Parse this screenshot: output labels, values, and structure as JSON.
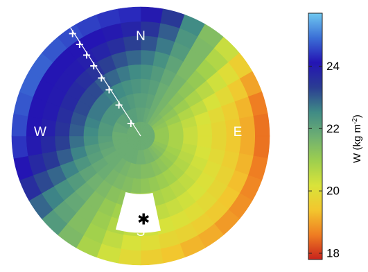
{
  "chart_data": {
    "type": "heatmap",
    "subtype": "polar",
    "directions": {
      "north": "N",
      "south": "S",
      "east": "E",
      "west": "W"
    },
    "colorbar": {
      "label": "W (kg m",
      "label_sup": "-2",
      "label_tail": ")",
      "range": [
        17.8,
        25.7
      ],
      "ticks": [
        {
          "value": 18,
          "label": "18"
        },
        {
          "value": 20,
          "label": "20"
        },
        {
          "value": 22,
          "label": "22"
        },
        {
          "value": 24,
          "label": "24"
        }
      ],
      "colors": [
        "#c8221c",
        "#ef7d22",
        "#f3c62e",
        "#d9e33a",
        "#9ecf4e",
        "#6eaf72",
        "#3f8a86",
        "#2a3c93",
        "#2414b4",
        "#3b6fd6",
        "#6fc8f0"
      ]
    },
    "track_azimuth_deg": -33,
    "track_markers": [
      {
        "zenith_fraction": 0.12,
        "symbol": "+"
      },
      {
        "zenith_fraction": 0.29,
        "symbol": "+"
      },
      {
        "zenith_fraction": 0.43,
        "symbol": "+"
      },
      {
        "zenith_fraction": 0.54,
        "symbol": "+"
      },
      {
        "zenith_fraction": 0.65,
        "symbol": "+"
      },
      {
        "zenith_fraction": 0.75,
        "symbol": "+"
      },
      {
        "zenith_fraction": 0.85,
        "symbol": "+"
      },
      {
        "zenith_fraction": 0.95,
        "symbol": "+"
      }
    ],
    "sun_marker": {
      "azimuth_deg": 178,
      "zenith_fraction": 0.65,
      "symbol": "✱"
    },
    "masked_region": {
      "azimuth_start_deg": 168,
      "azimuth_end_deg": 195,
      "zenith_start": 0.45,
      "zenith_end": 0.75
    },
    "grid": {
      "rings": 9,
      "sectors": 36,
      "values": [
        [
          21.8,
          21.8,
          21.8,
          21.8,
          21.8,
          21.8,
          21.8,
          21.8,
          21.8,
          21.8,
          21.8,
          21.8,
          21.8,
          21.8,
          21.8,
          21.8,
          21.8,
          21.8,
          21.8,
          21.8,
          21.8,
          21.8,
          21.8,
          21.8,
          21.8,
          21.8,
          21.8,
          21.8,
          21.8,
          21.8,
          21.8,
          21.8,
          21.8,
          21.8,
          21.8,
          21.8
        ],
        [
          22.0,
          21.9,
          21.8,
          21.6,
          21.5,
          21.3,
          21.2,
          21.1,
          21.1,
          21.1,
          21.1,
          21.2,
          21.3,
          21.4,
          21.5,
          21.6,
          21.6,
          21.7,
          21.7,
          21.8,
          21.8,
          21.8,
          21.8,
          21.8,
          21.8,
          21.8,
          21.8,
          21.8,
          21.9,
          21.9,
          22.0,
          22.0,
          22.1,
          22.1,
          22.1,
          22.0
        ],
        [
          22.1,
          22.0,
          21.8,
          21.6,
          21.4,
          21.2,
          21.0,
          20.8,
          20.8,
          20.8,
          20.8,
          20.9,
          21.0,
          21.1,
          21.2,
          21.3,
          21.4,
          21.4,
          21.5,
          21.5,
          21.6,
          21.7,
          21.8,
          21.8,
          21.9,
          22.0,
          22.1,
          22.2,
          22.2,
          22.3,
          22.3,
          22.3,
          22.3,
          22.3,
          22.2,
          22.1
        ],
        [
          22.2,
          22.1,
          21.8,
          21.6,
          21.3,
          21.0,
          20.7,
          20.5,
          20.4,
          20.4,
          20.5,
          20.6,
          20.7,
          20.8,
          20.9,
          21.0,
          21.1,
          21.2,
          21.3,
          21.4,
          21.5,
          21.6,
          21.8,
          21.9,
          22.1,
          22.2,
          22.4,
          22.5,
          22.6,
          22.7,
          22.7,
          22.7,
          22.6,
          22.5,
          22.4,
          22.3
        ],
        [
          22.4,
          22.2,
          21.9,
          21.6,
          21.2,
          20.8,
          20.5,
          20.2,
          20.1,
          20.1,
          20.2,
          20.3,
          20.4,
          20.5,
          20.6,
          20.7,
          20.8,
          20.9,
          21.0,
          21.2,
          21.3,
          21.5,
          21.7,
          22.0,
          22.3,
          22.6,
          22.8,
          23.0,
          23.1,
          23.2,
          23.2,
          23.2,
          23.0,
          22.9,
          22.7,
          22.5
        ],
        [
          22.7,
          22.4,
          22.0,
          21.5,
          21.1,
          20.6,
          20.2,
          19.9,
          19.8,
          19.8,
          19.9,
          20.0,
          20.1,
          20.2,
          20.3,
          20.4,
          20.5,
          20.6,
          20.7,
          20.9,
          21.1,
          21.4,
          21.8,
          22.2,
          22.6,
          23.0,
          23.3,
          23.5,
          23.6,
          23.7,
          23.7,
          23.6,
          23.5,
          23.3,
          23.1,
          22.9
        ],
        [
          23.1,
          22.7,
          22.2,
          21.5,
          20.9,
          20.3,
          19.9,
          19.6,
          19.5,
          19.5,
          19.6,
          19.7,
          19.8,
          19.9,
          20.0,
          20.1,
          20.2,
          20.3,
          20.5,
          20.7,
          21.0,
          21.4,
          21.9,
          22.4,
          22.9,
          23.4,
          23.7,
          23.9,
          24.0,
          24.0,
          24.0,
          24.0,
          23.9,
          23.8,
          23.6,
          23.3
        ],
        [
          23.5,
          23.0,
          22.3,
          21.5,
          20.7,
          20.0,
          19.5,
          19.2,
          19.1,
          19.1,
          19.2,
          19.3,
          19.4,
          19.5,
          19.6,
          19.7,
          19.8,
          20.0,
          20.2,
          20.5,
          20.9,
          21.4,
          22.0,
          22.6,
          23.2,
          23.7,
          24.0,
          24.1,
          24.1,
          24.1,
          24.1,
          24.1,
          24.1,
          24.1,
          24.0,
          23.8
        ],
        [
          24.0,
          23.4,
          22.5,
          21.4,
          20.4,
          19.6,
          19.0,
          18.6,
          18.5,
          18.5,
          18.6,
          18.7,
          18.8,
          18.9,
          19.1,
          19.2,
          19.4,
          19.6,
          19.9,
          20.3,
          20.8,
          21.5,
          22.2,
          22.9,
          23.6,
          24.1,
          24.4,
          24.6,
          24.7,
          24.8,
          24.8,
          24.7,
          24.6,
          24.5,
          24.4,
          24.3
        ]
      ]
    }
  }
}
